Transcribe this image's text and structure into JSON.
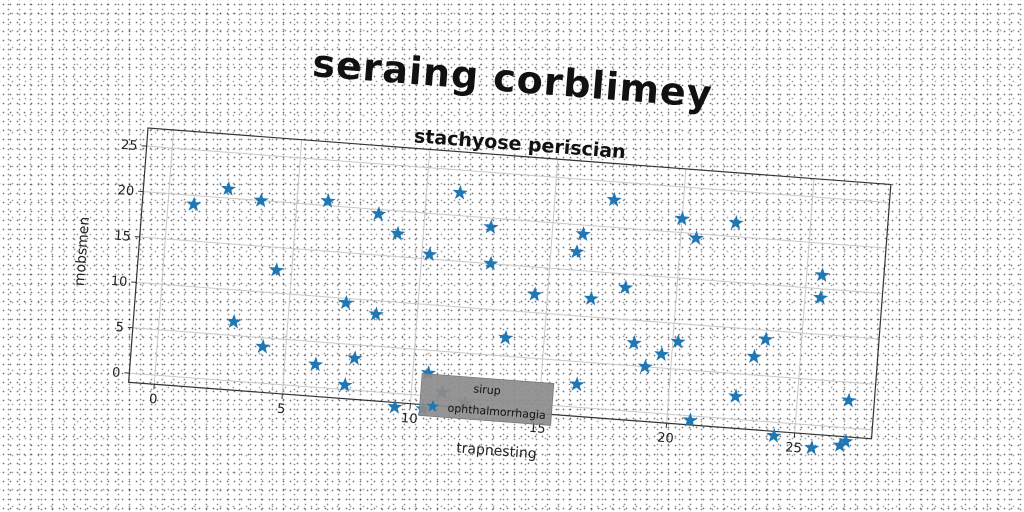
{
  "suptitle": "seraing corblimey",
  "chart_data": {
    "type": "scatter",
    "title": "stachyose periscian",
    "xlabel": "trapnesting",
    "ylabel": "mobsmen",
    "xlim": [
      -1,
      28
    ],
    "ylim": [
      -1,
      27
    ],
    "xticks": [
      0,
      5,
      10,
      15,
      20,
      25
    ],
    "yticks": [
      0,
      5,
      10,
      15,
      20,
      25
    ],
    "grid": true,
    "legend": {
      "title": "sirup",
      "placement": "lower-center"
    },
    "marker": "star",
    "color": "#1f77b4",
    "series": [
      {
        "name": "ophthalmorrhagia",
        "x": [
          1.0,
          2.3,
          3.6,
          2.9,
          4.1,
          4.4,
          6.2,
          6.2,
          7.2,
          7.4,
          7.7,
          8.2,
          8.4,
          9.0,
          9.4,
          10.3,
          10.6,
          10.5,
          11.2,
          11.3,
          12.1,
          12.6,
          12.7,
          13.5,
          14.5,
          16.0,
          16.2,
          16.4,
          16.7,
          17.3,
          18.0,
          18.5,
          19.0,
          19.6,
          20.0,
          20.2,
          20.6,
          20.9,
          22.1,
          22.6,
          23.2,
          23.6,
          24.2,
          25.6,
          25.6,
          25.7,
          26.8,
          27.0,
          27.0
        ],
        "y": [
          19,
          21,
          20,
          6.5,
          4,
          12.5,
          20.5,
          2.5,
          9.5,
          0.5,
          3.5,
          19.5,
          8.5,
          17.5,
          -1.5,
          15.5,
          2.5,
          -1.5,
          0.5,
          22.5,
          -0.5,
          19,
          15,
          7,
          12,
          17,
          19,
          2.5,
          12,
          23,
          13.5,
          7.5,
          5,
          6.5,
          21.5,
          8,
          19.5,
          -0.5,
          21.5,
          2.5,
          7,
          9,
          -1.5,
          16.5,
          14,
          -2.5,
          -2,
          -1.5,
          3
        ]
      }
    ]
  }
}
